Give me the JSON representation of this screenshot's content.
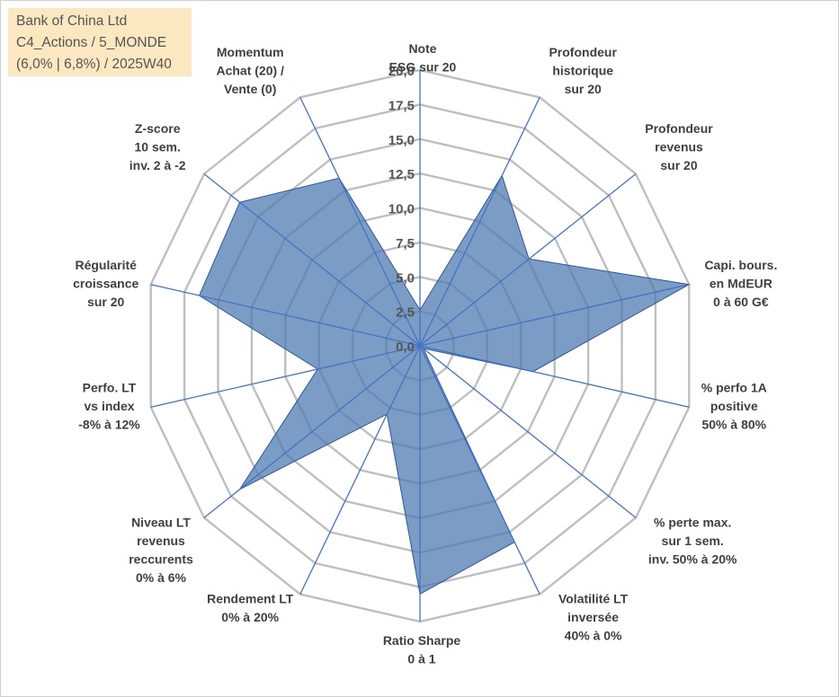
{
  "info_box": {
    "line1": "Bank of China Ltd",
    "line2": "C4_Actions / 5_MONDE",
    "line3": "(6,0% | 6,8%) / 2025W40"
  },
  "colors": {
    "grid": "#bfbfbf",
    "spoke": "#4472c4",
    "fill": "#4f7cb1",
    "fill_opacity": 0.75,
    "stroke": "#2f5597",
    "info_bg": "#fbe8c1"
  },
  "chart_data": {
    "type": "radar",
    "min": 0,
    "max": 20,
    "tick_step": 2.5,
    "tick_labels": [
      "0,0",
      "2,5",
      "5,0",
      "7,5",
      "10,0",
      "12,5",
      "15,0",
      "17,5",
      "20,0"
    ],
    "axes": [
      {
        "label": [
          "Note",
          "ESG sur 20"
        ]
      },
      {
        "label": [
          "Profondeur",
          "historique",
          "sur 20"
        ]
      },
      {
        "label": [
          "Profondeur",
          "revenus",
          "sur 20"
        ]
      },
      {
        "label": [
          "Capi. bours.",
          "en MdEUR",
          "0 à 60 G€"
        ]
      },
      {
        "label": [
          "% perfo 1A",
          "positive",
          "50% à 80%"
        ]
      },
      {
        "label": [
          "% perte max.",
          "sur 1 sem.",
          "inv. 50% à 20%"
        ]
      },
      {
        "label": [
          "Volatilité LT",
          "inversée",
          "40% à 0%"
        ]
      },
      {
        "label": [
          "Ratio Sharpe",
          "0 à 1"
        ]
      },
      {
        "label": [
          "Rendement LT",
          "0% à 20%"
        ]
      },
      {
        "label": [
          "Niveau LT",
          "revenus",
          "reccurents",
          "0% à 6%"
        ]
      },
      {
        "label": [
          "Perfo. LT",
          "vs index",
          "-8% à 12%"
        ]
      },
      {
        "label": [
          "Régularité",
          "croissance",
          "sur 20"
        ]
      },
      {
        "label": [
          "Z-score",
          "10 sem.",
          "inv. 2 à -2"
        ]
      },
      {
        "label": [
          "Momentum",
          "Achat (20) /",
          "Vente (0)"
        ]
      }
    ],
    "series": [
      {
        "values": [
          2.6,
          13.7,
          10.1,
          20.0,
          8.4,
          0.3,
          15.8,
          18.0,
          5.5,
          16.7,
          7.6,
          16.4,
          16.7,
          13.5
        ]
      }
    ]
  }
}
